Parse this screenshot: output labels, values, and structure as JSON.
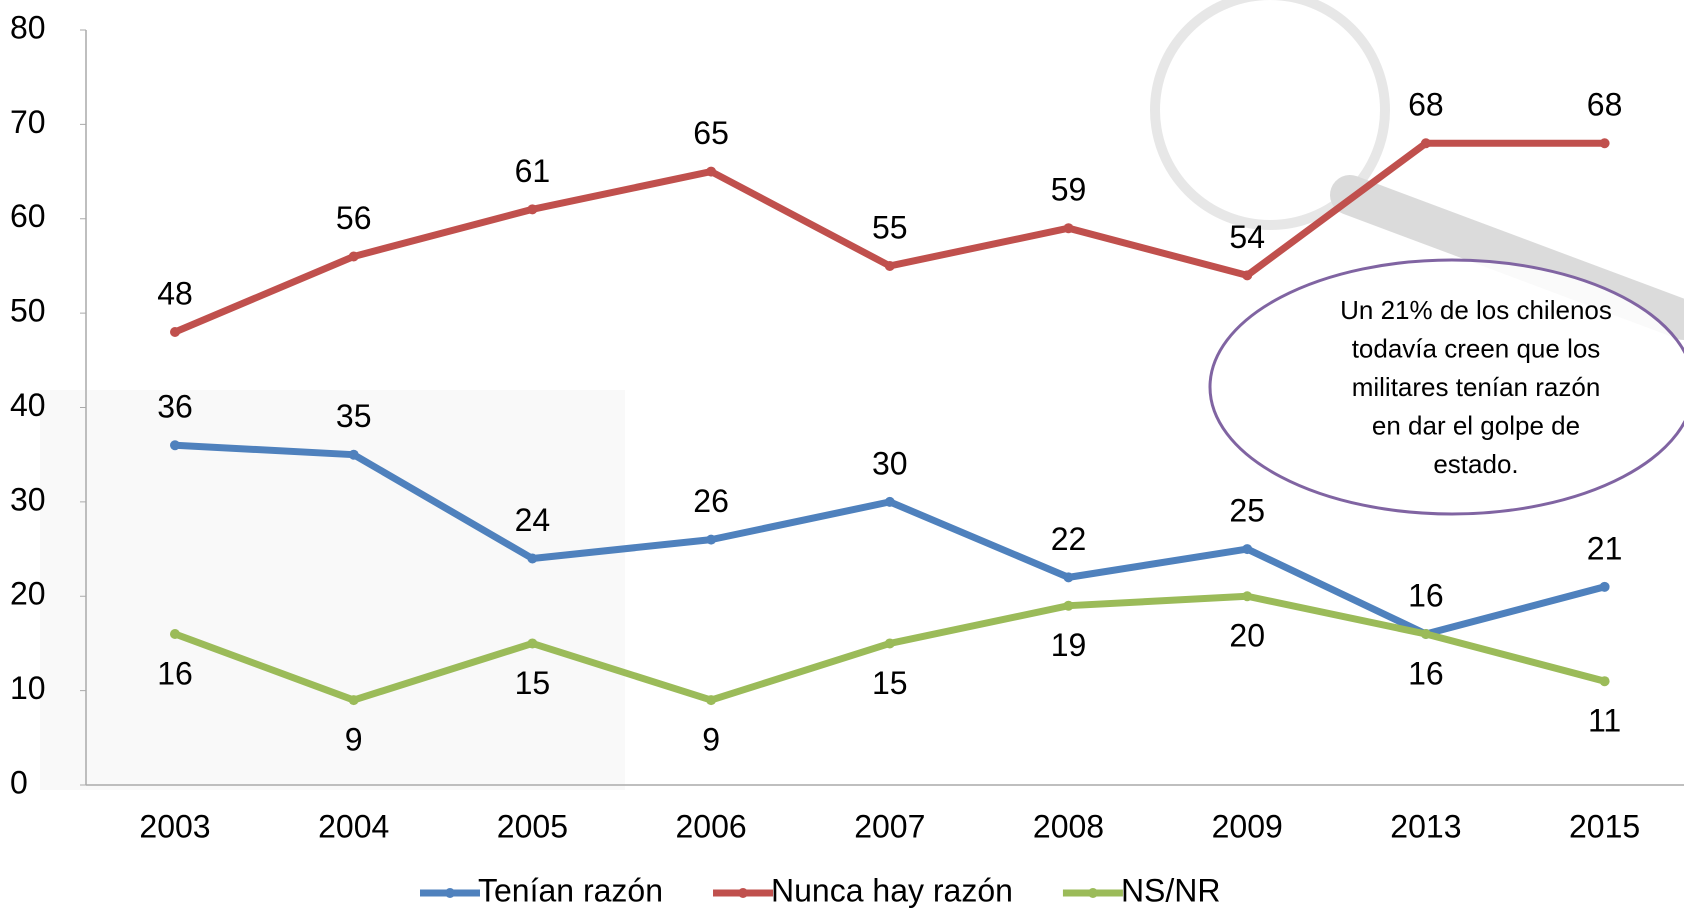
{
  "chart_data": {
    "type": "line",
    "categories": [
      "2003",
      "2004",
      "2005",
      "2006",
      "2007",
      "2008",
      "2009",
      "2013",
      "2015"
    ],
    "series": [
      {
        "name": "Tenían razón",
        "color": "#4f81bd",
        "values": [
          36,
          35,
          24,
          26,
          30,
          22,
          25,
          16,
          21
        ]
      },
      {
        "name": "Nunca hay razón",
        "color": "#c0504d",
        "values": [
          48,
          56,
          61,
          65,
          55,
          59,
          54,
          68,
          68
        ]
      },
      {
        "name": "NS/NR",
        "color": "#9bbb59",
        "values": [
          16,
          9,
          15,
          9,
          15,
          19,
          20,
          16,
          11
        ]
      }
    ],
    "ylim": [
      0,
      80
    ],
    "yticks": [
      0,
      10,
      20,
      30,
      40,
      50,
      60,
      70,
      80
    ],
    "legend": "bottom",
    "annotation": [
      "Un 21% de los chilenos",
      "todavía creen que los",
      "militares tenían razón",
      "en dar el golpe de",
      "estado."
    ]
  }
}
